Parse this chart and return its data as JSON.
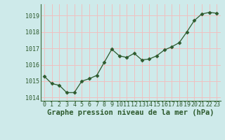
{
  "x": [
    0,
    1,
    2,
    3,
    4,
    5,
    6,
    7,
    8,
    9,
    10,
    11,
    12,
    13,
    14,
    15,
    16,
    17,
    18,
    19,
    20,
    21,
    22,
    23
  ],
  "y": [
    1015.3,
    1014.85,
    1014.75,
    1014.3,
    1014.3,
    1015.0,
    1015.15,
    1015.35,
    1016.15,
    1016.95,
    1016.55,
    1016.45,
    1016.7,
    1016.3,
    1016.35,
    1016.55,
    1016.9,
    1017.1,
    1017.35,
    1018.0,
    1018.7,
    1019.1,
    1019.2,
    1019.15
  ],
  "line_color": "#2d5a2d",
  "marker": "D",
  "marker_size": 2.5,
  "bg_color": "#ceeaea",
  "grid_color": "#f0c0c0",
  "ylim": [
    1013.8,
    1019.7
  ],
  "yticks": [
    1014,
    1015,
    1016,
    1017,
    1018,
    1019
  ],
  "xlim": [
    -0.5,
    23.5
  ],
  "xlabel": "Graphe pression niveau de la mer (hPa)",
  "xlabel_fontsize": 7.5,
  "tick_fontsize": 6.0,
  "label_color": "#2d5a2d"
}
